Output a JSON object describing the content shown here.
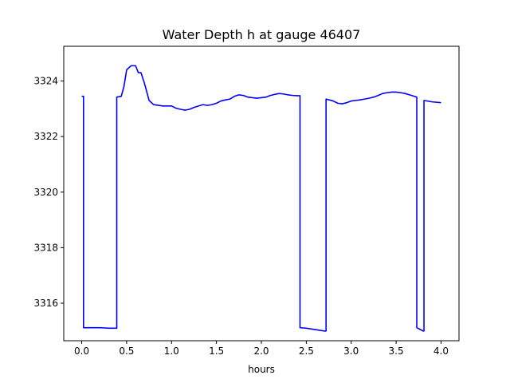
{
  "chart_data": {
    "type": "line",
    "title": "Water Depth h at gauge 46407",
    "xlabel": "hours",
    "ylabel": "",
    "xlim": [
      -0.2,
      4.2
    ],
    "ylim": [
      3314.65,
      3325.25
    ],
    "xticks": [
      0.0,
      0.5,
      1.0,
      1.5,
      2.0,
      2.5,
      3.0,
      3.5,
      4.0
    ],
    "xtick_labels": [
      "0.0",
      "0.5",
      "1.0",
      "1.5",
      "2.0",
      "2.5",
      "3.0",
      "3.5",
      "4.0"
    ],
    "yticks": [
      3316,
      3318,
      3320,
      3322,
      3324
    ],
    "ytick_labels": [
      "3316",
      "3318",
      "3320",
      "3322",
      "3324"
    ],
    "grid": false,
    "series": [
      {
        "color": "#0000ff",
        "x": [
          0.0,
          0.02,
          0.02,
          0.1,
          0.2,
          0.3,
          0.39,
          0.39,
          0.44,
          0.47,
          0.5,
          0.55,
          0.6,
          0.63,
          0.66,
          0.7,
          0.75,
          0.8,
          0.9,
          1.0,
          1.05,
          1.1,
          1.15,
          1.2,
          1.25,
          1.3,
          1.35,
          1.4,
          1.45,
          1.5,
          1.55,
          1.6,
          1.65,
          1.7,
          1.75,
          1.8,
          1.85,
          1.9,
          1.95,
          2.0,
          2.05,
          2.1,
          2.15,
          2.2,
          2.25,
          2.3,
          2.35,
          2.4,
          2.43,
          2.43,
          2.5,
          2.6,
          2.7,
          2.72,
          2.72,
          2.8,
          2.85,
          2.9,
          2.95,
          3.0,
          3.05,
          3.1,
          3.15,
          3.2,
          3.25,
          3.3,
          3.35,
          3.4,
          3.45,
          3.5,
          3.55,
          3.6,
          3.65,
          3.7,
          3.73,
          3.73,
          3.8,
          3.81,
          3.81,
          3.9,
          4.0
        ],
        "y": [
          3323.45,
          3323.45,
          3315.12,
          3315.12,
          3315.12,
          3315.1,
          3315.1,
          3323.42,
          3323.45,
          3323.8,
          3324.4,
          3324.55,
          3324.55,
          3324.3,
          3324.3,
          3323.9,
          3323.3,
          3323.15,
          3323.1,
          3323.1,
          3323.02,
          3322.98,
          3322.95,
          3322.98,
          3323.05,
          3323.1,
          3323.15,
          3323.12,
          3323.15,
          3323.2,
          3323.28,
          3323.32,
          3323.35,
          3323.45,
          3323.5,
          3323.48,
          3323.42,
          3323.4,
          3323.38,
          3323.4,
          3323.42,
          3323.48,
          3323.52,
          3323.55,
          3323.53,
          3323.5,
          3323.48,
          3323.47,
          3323.47,
          3315.12,
          3315.1,
          3315.05,
          3315.0,
          3315.0,
          3323.35,
          3323.28,
          3323.2,
          3323.18,
          3323.22,
          3323.28,
          3323.3,
          3323.32,
          3323.35,
          3323.38,
          3323.42,
          3323.48,
          3323.55,
          3323.58,
          3323.6,
          3323.6,
          3323.58,
          3323.55,
          3323.5,
          3323.45,
          3323.42,
          3315.12,
          3315.0,
          3315.0,
          3323.3,
          3323.25,
          3323.22
        ]
      }
    ]
  }
}
